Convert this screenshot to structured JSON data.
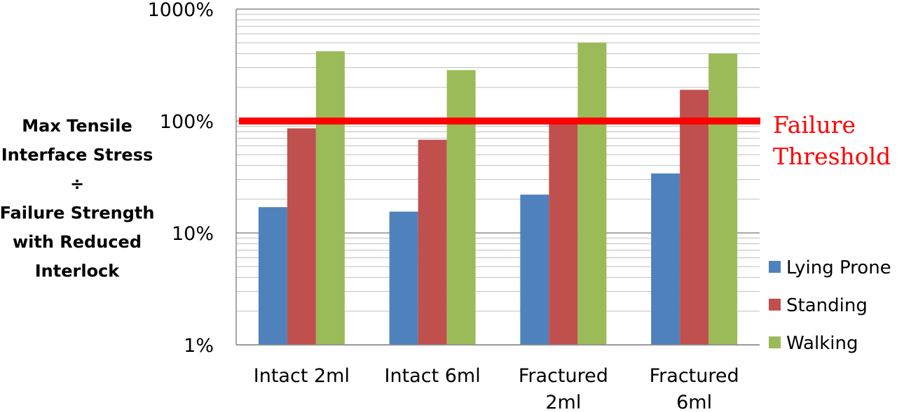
{
  "chart_data": {
    "type": "bar",
    "ylabel": "Max Tensile Interface Stress ÷ Failure Strength with Reduced Interlock",
    "ylabel_lines": [
      "Max Tensile",
      "Interface Stress",
      "÷",
      "Failure Strength",
      "with Reduced",
      "Interlock"
    ],
    "xlabel": "",
    "yscale": "log",
    "ylim": [
      1,
      1000
    ],
    "yticks": [
      1,
      10,
      100,
      1000
    ],
    "ytick_labels": [
      "1%",
      "10%",
      "100%",
      "1000%"
    ],
    "grid": "horizontal, major and minor",
    "legend_position": "right",
    "categories": [
      "Intact 2ml",
      "Intact 6ml",
      "Fractured 2ml",
      "Fractured 6ml"
    ],
    "category_lines": [
      [
        "Intact 2ml"
      ],
      [
        "Intact 6ml"
      ],
      [
        "Fractured",
        "2ml"
      ],
      [
        "Fractured",
        "6ml"
      ]
    ],
    "series": [
      {
        "name": "Lying Prone",
        "color": "#4f81bd",
        "values": [
          17,
          15.5,
          22,
          34
        ]
      },
      {
        "name": "Standing",
        "color": "#c0504d",
        "values": [
          86,
          68,
          100,
          190
        ]
      },
      {
        "name": "Walking",
        "color": "#9bbb59",
        "values": [
          420,
          285,
          500,
          400
        ]
      }
    ],
    "threshold": {
      "value": 100,
      "label_lines": [
        "Failure",
        "Threshold"
      ],
      "color": "#ff0000"
    }
  }
}
